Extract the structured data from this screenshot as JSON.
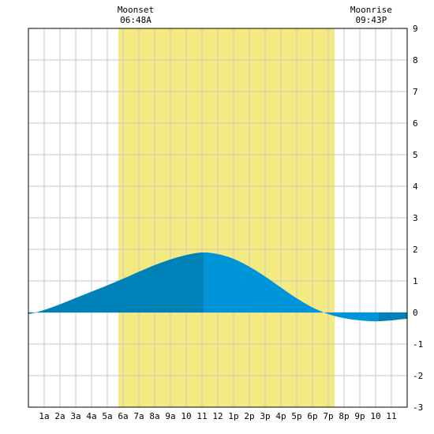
{
  "chart_data": {
    "type": "area",
    "x_unit": "hours since midnight",
    "x_tick_labels": [
      "1a",
      "2a",
      "3a",
      "4a",
      "5a",
      "6a",
      "7a",
      "8a",
      "9a",
      "10",
      "11",
      "12",
      "1p",
      "2p",
      "3p",
      "4p",
      "5p",
      "6p",
      "7p",
      "8p",
      "9p",
      "10",
      "11"
    ],
    "y_ticks": [
      9,
      8,
      7,
      6,
      5,
      4,
      3,
      2,
      1,
      0,
      -1,
      -2,
      -3
    ],
    "xlim": [
      0,
      24
    ],
    "ylim": [
      -3,
      9
    ],
    "grid": true,
    "daylight_band": {
      "start_hour": 5.7,
      "end_hour": 19.4,
      "color": "#f3ea82"
    },
    "events": [
      {
        "label": "Moonset",
        "time": "06:48A",
        "hour": 6.8
      },
      {
        "label": "Moonrise",
        "time": "09:43P",
        "hour": 21.72
      }
    ],
    "series": [
      {
        "x": [
          0,
          1,
          2,
          3,
          4,
          5,
          6,
          7,
          8,
          9,
          10,
          11,
          12,
          13,
          14,
          15,
          16,
          17,
          18,
          19,
          20,
          21,
          22,
          23,
          24
        ],
        "values": [
          -0.05,
          0.08,
          0.26,
          0.46,
          0.66,
          0.86,
          1.07,
          1.29,
          1.5,
          1.68,
          1.82,
          1.9,
          1.85,
          1.7,
          1.45,
          1.14,
          0.79,
          0.45,
          0.16,
          -0.05,
          -0.18,
          -0.25,
          -0.28,
          -0.25,
          -0.2
        ]
      }
    ],
    "turning_points": [
      {
        "hour": 11.1,
        "value": 1.9
      },
      {
        "hour": 22.2,
        "value": -0.28
      }
    ],
    "colors": {
      "rising_fill": "#0082b8",
      "falling_fill": "#0095d8",
      "grid": "#c8c8c8",
      "frame": "#000000"
    }
  }
}
